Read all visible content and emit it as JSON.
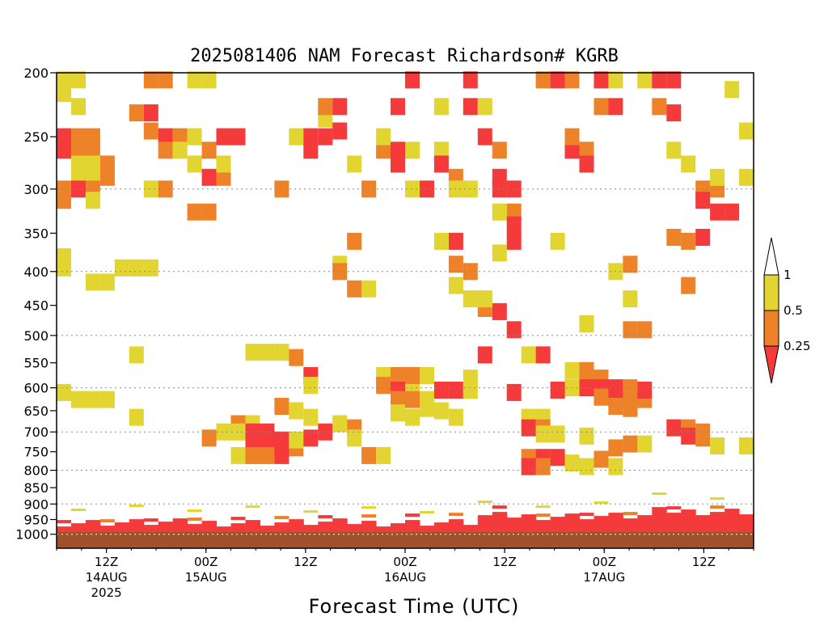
{
  "chart_data": {
    "type": "heatmap",
    "title": "2025081406 NAM Forecast Richardson# KGRB",
    "xlabel": "Forecast Time (UTC)",
    "ylabel": "",
    "x_ticks": [
      {
        "label": "12Z",
        "date": "14AUG",
        "year": "2025",
        "hour": 6
      },
      {
        "label": "00Z",
        "date": "15AUG",
        "year": "",
        "hour": 18
      },
      {
        "label": "12Z",
        "date": "",
        "year": "",
        "hour": 30
      },
      {
        "label": "00Z",
        "date": "16AUG",
        "year": "",
        "hour": 42
      },
      {
        "label": "12Z",
        "date": "",
        "year": "",
        "hour": 54
      },
      {
        "label": "00Z",
        "date": "17AUG",
        "year": "",
        "hour": 66
      },
      {
        "label": "12Z",
        "date": "",
        "year": "",
        "hour": 78
      }
    ],
    "x_range_hours": [
      0,
      84
    ],
    "y_ticks": [
      200,
      250,
      300,
      350,
      400,
      450,
      500,
      550,
      600,
      650,
      700,
      750,
      800,
      850,
      900,
      950,
      1000
    ],
    "y_range_hpa": [
      200,
      1050
    ],
    "y_scale": "log",
    "gridlines_hpa": [
      300,
      400,
      500,
      600,
      700,
      800,
      900,
      1000
    ],
    "surface_top_hpa": 990,
    "legend": {
      "labels": [
        "1",
        "0.5",
        "0.25"
      ],
      "classes": [
        {
          "name": "0.5-1",
          "color": "#e3d531"
        },
        {
          "name": "0.25-0.5",
          "color": "#ee8228"
        },
        {
          "name": "<0.25",
          "color": "#f43a3a"
        }
      ]
    },
    "colors": {
      "yellow": "#e3d531",
      "orange": "#ee8228",
      "red": "#f43a3a",
      "surface": "#a0522d"
    },
    "cells": [
      {
        "x": 0,
        "p": 205,
        "c": "y"
      },
      {
        "x": 1,
        "p": 205,
        "c": "y"
      },
      {
        "x": 0,
        "p": 215,
        "c": "y"
      },
      {
        "x": 1,
        "p": 225,
        "c": "y"
      },
      {
        "x": 0,
        "p": 250,
        "c": "r"
      },
      {
        "x": 1,
        "p": 250,
        "c": "o"
      },
      {
        "x": 2,
        "p": 250,
        "c": "o"
      },
      {
        "x": 0,
        "p": 262,
        "c": "r"
      },
      {
        "x": 1,
        "p": 262,
        "c": "o"
      },
      {
        "x": 2,
        "p": 262,
        "c": "o"
      },
      {
        "x": 1,
        "p": 275,
        "c": "y"
      },
      {
        "x": 2,
        "p": 275,
        "c": "y"
      },
      {
        "x": 3,
        "p": 275,
        "c": "o"
      },
      {
        "x": 1,
        "p": 288,
        "c": "y"
      },
      {
        "x": 2,
        "p": 288,
        "c": "y"
      },
      {
        "x": 3,
        "p": 288,
        "c": "o"
      },
      {
        "x": 0,
        "p": 300,
        "c": "o"
      },
      {
        "x": 1,
        "p": 300,
        "c": "r"
      },
      {
        "x": 2,
        "p": 300,
        "c": "o"
      },
      {
        "x": 0,
        "p": 312,
        "c": "o"
      },
      {
        "x": 2,
        "p": 312,
        "c": "y"
      },
      {
        "x": 0,
        "p": 380,
        "c": "y"
      },
      {
        "x": 0,
        "p": 395,
        "c": "y"
      },
      {
        "x": 2,
        "p": 415,
        "c": "y"
      },
      {
        "x": 3,
        "p": 415,
        "c": "y"
      },
      {
        "x": 4,
        "p": 395,
        "c": "y"
      },
      {
        "x": 5,
        "p": 395,
        "c": "y"
      },
      {
        "x": 6,
        "p": 395,
        "c": "y"
      },
      {
        "x": 6,
        "p": 205,
        "c": "o"
      },
      {
        "x": 7,
        "p": 205,
        "c": "o"
      },
      {
        "x": 5,
        "p": 230,
        "c": "o"
      },
      {
        "x": 6,
        "p": 230,
        "c": "r"
      },
      {
        "x": 6,
        "p": 245,
        "c": "o"
      },
      {
        "x": 7,
        "p": 250,
        "c": "r"
      },
      {
        "x": 8,
        "p": 250,
        "c": "o"
      },
      {
        "x": 7,
        "p": 262,
        "c": "o"
      },
      {
        "x": 8,
        "p": 262,
        "c": "y"
      },
      {
        "x": 9,
        "p": 250,
        "c": "y"
      },
      {
        "x": 9,
        "p": 275,
        "c": "y"
      },
      {
        "x": 10,
        "p": 262,
        "c": "o"
      },
      {
        "x": 10,
        "p": 288,
        "c": "r"
      },
      {
        "x": 11,
        "p": 288,
        "c": "o"
      },
      {
        "x": 9,
        "p": 205,
        "c": "y"
      },
      {
        "x": 10,
        "p": 205,
        "c": "y"
      },
      {
        "x": 11,
        "p": 250,
        "c": "r"
      },
      {
        "x": 12,
        "p": 250,
        "c": "r"
      },
      {
        "x": 11,
        "p": 275,
        "c": "y"
      },
      {
        "x": 10,
        "p": 325,
        "c": "o"
      },
      {
        "x": 9,
        "p": 325,
        "c": "o"
      },
      {
        "x": 6,
        "p": 300,
        "c": "y"
      },
      {
        "x": 7,
        "p": 300,
        "c": "o"
      },
      {
        "x": 15,
        "p": 300,
        "c": "o"
      },
      {
        "x": 16,
        "p": 250,
        "c": "y"
      },
      {
        "x": 17,
        "p": 250,
        "c": "r"
      },
      {
        "x": 18,
        "p": 250,
        "c": "r"
      },
      {
        "x": 17,
        "p": 262,
        "c": "r"
      },
      {
        "x": 18,
        "p": 235,
        "c": "y"
      },
      {
        "x": 19,
        "p": 225,
        "c": "r"
      },
      {
        "x": 18,
        "p": 225,
        "c": "o"
      },
      {
        "x": 19,
        "p": 245,
        "c": "r"
      },
      {
        "x": 20,
        "p": 275,
        "c": "y"
      },
      {
        "x": 22,
        "p": 262,
        "c": "o"
      },
      {
        "x": 23,
        "p": 275,
        "c": "r"
      },
      {
        "x": 24,
        "p": 205,
        "c": "r"
      },
      {
        "x": 24,
        "p": 300,
        "c": "y"
      },
      {
        "x": 25,
        "p": 300,
        "c": "r"
      },
      {
        "x": 23,
        "p": 225,
        "c": "r"
      },
      {
        "x": 22,
        "p": 250,
        "c": "y"
      },
      {
        "x": 23,
        "p": 262,
        "c": "r"
      },
      {
        "x": 24,
        "p": 262,
        "c": "y"
      },
      {
        "x": 21,
        "p": 300,
        "c": "o"
      },
      {
        "x": 26,
        "p": 225,
        "c": "y"
      },
      {
        "x": 26,
        "p": 262,
        "c": "y"
      },
      {
        "x": 26,
        "p": 275,
        "c": "r"
      },
      {
        "x": 27,
        "p": 288,
        "c": "o"
      },
      {
        "x": 27,
        "p": 300,
        "c": "y"
      },
      {
        "x": 28,
        "p": 300,
        "c": "y"
      },
      {
        "x": 28,
        "p": 205,
        "c": "r"
      },
      {
        "x": 28,
        "p": 225,
        "c": "r"
      },
      {
        "x": 29,
        "p": 225,
        "c": "y"
      },
      {
        "x": 29,
        "p": 250,
        "c": "r"
      },
      {
        "x": 30,
        "p": 262,
        "c": "o"
      },
      {
        "x": 30,
        "p": 288,
        "c": "r"
      },
      {
        "x": 30,
        "p": 300,
        "c": "r"
      },
      {
        "x": 31,
        "p": 300,
        "c": "r"
      },
      {
        "x": 31,
        "p": 325,
        "c": "o"
      },
      {
        "x": 30,
        "p": 325,
        "c": "y"
      },
      {
        "x": 31,
        "p": 340,
        "c": "r"
      },
      {
        "x": 33,
        "p": 205,
        "c": "o"
      },
      {
        "x": 34,
        "p": 205,
        "c": "r"
      },
      {
        "x": 35,
        "p": 205,
        "c": "o"
      },
      {
        "x": 35,
        "p": 262,
        "c": "r"
      },
      {
        "x": 35,
        "p": 250,
        "c": "o"
      },
      {
        "x": 36,
        "p": 262,
        "c": "o"
      },
      {
        "x": 36,
        "p": 275,
        "c": "r"
      },
      {
        "x": 37,
        "p": 205,
        "c": "r"
      },
      {
        "x": 38,
        "p": 205,
        "c": "y"
      },
      {
        "x": 38,
        "p": 225,
        "c": "r"
      },
      {
        "x": 37,
        "p": 225,
        "c": "o"
      },
      {
        "x": 40,
        "p": 205,
        "c": "y"
      },
      {
        "x": 41,
        "p": 205,
        "c": "r"
      },
      {
        "x": 42,
        "p": 205,
        "c": "r"
      },
      {
        "x": 41,
        "p": 225,
        "c": "o"
      },
      {
        "x": 42,
        "p": 230,
        "c": "r"
      },
      {
        "x": 42,
        "p": 262,
        "c": "y"
      },
      {
        "x": 44,
        "p": 300,
        "c": "o"
      },
      {
        "x": 45,
        "p": 300,
        "c": "o"
      },
      {
        "x": 44,
        "p": 312,
        "c": "r"
      },
      {
        "x": 45,
        "p": 325,
        "c": "r"
      },
      {
        "x": 46,
        "p": 325,
        "c": "r"
      },
      {
        "x": 46,
        "p": 212,
        "c": "y"
      },
      {
        "x": 47,
        "p": 245,
        "c": "y"
      },
      {
        "x": 47,
        "p": 288,
        "c": "y"
      },
      {
        "x": 45,
        "p": 288,
        "c": "y"
      },
      {
        "x": 43,
        "p": 275,
        "c": "y"
      },
      {
        "x": 20,
        "p": 360,
        "c": "o"
      },
      {
        "x": 19,
        "p": 390,
        "c": "y"
      },
      {
        "x": 19,
        "p": 400,
        "c": "o"
      },
      {
        "x": 20,
        "p": 425,
        "c": "o"
      },
      {
        "x": 21,
        "p": 425,
        "c": "y"
      },
      {
        "x": 27,
        "p": 360,
        "c": "r"
      },
      {
        "x": 26,
        "p": 360,
        "c": "y"
      },
      {
        "x": 27,
        "p": 390,
        "c": "o"
      },
      {
        "x": 28,
        "p": 400,
        "c": "o"
      },
      {
        "x": 27,
        "p": 420,
        "c": "y"
      },
      {
        "x": 29,
        "p": 455,
        "c": "o"
      },
      {
        "x": 30,
        "p": 460,
        "c": "r"
      },
      {
        "x": 29,
        "p": 440,
        "c": "y"
      },
      {
        "x": 28,
        "p": 440,
        "c": "y"
      },
      {
        "x": 31,
        "p": 360,
        "c": "r"
      },
      {
        "x": 30,
        "p": 375,
        "c": "y"
      },
      {
        "x": 34,
        "p": 360,
        "c": "y"
      },
      {
        "x": 38,
        "p": 400,
        "c": "y"
      },
      {
        "x": 39,
        "p": 390,
        "c": "o"
      },
      {
        "x": 39,
        "p": 440,
        "c": "y"
      },
      {
        "x": 39,
        "p": 490,
        "c": "o"
      },
      {
        "x": 40,
        "p": 490,
        "c": "o"
      },
      {
        "x": 36,
        "p": 480,
        "c": "y"
      },
      {
        "x": 31,
        "p": 490,
        "c": "r"
      },
      {
        "x": 42,
        "p": 355,
        "c": "o"
      },
      {
        "x": 43,
        "p": 360,
        "c": "o"
      },
      {
        "x": 44,
        "p": 355,
        "c": "r"
      },
      {
        "x": 43,
        "p": 420,
        "c": "o"
      },
      {
        "x": 5,
        "p": 535,
        "c": "y"
      },
      {
        "x": 13,
        "p": 530,
        "c": "y"
      },
      {
        "x": 14,
        "p": 530,
        "c": "y"
      },
      {
        "x": 15,
        "p": 530,
        "c": "y"
      },
      {
        "x": 16,
        "p": 540,
        "c": "o"
      },
      {
        "x": 17,
        "p": 575,
        "c": "r"
      },
      {
        "x": 17,
        "p": 595,
        "c": "y"
      },
      {
        "x": 29,
        "p": 535,
        "c": "r"
      },
      {
        "x": 32,
        "p": 535,
        "c": "y"
      },
      {
        "x": 33,
        "p": 535,
        "c": "r"
      },
      {
        "x": 22,
        "p": 575,
        "c": "y"
      },
      {
        "x": 23,
        "p": 575,
        "c": "o"
      },
      {
        "x": 24,
        "p": 575,
        "c": "o"
      },
      {
        "x": 25,
        "p": 575,
        "c": "y"
      },
      {
        "x": 22,
        "p": 595,
        "c": "o"
      },
      {
        "x": 23,
        "p": 605,
        "c": "r"
      },
      {
        "x": 24,
        "p": 610,
        "c": "y"
      },
      {
        "x": 23,
        "p": 625,
        "c": "o"
      },
      {
        "x": 24,
        "p": 625,
        "c": "o"
      },
      {
        "x": 25,
        "p": 625,
        "c": "y"
      },
      {
        "x": 26,
        "p": 605,
        "c": "r"
      },
      {
        "x": 27,
        "p": 605,
        "c": "r"
      },
      {
        "x": 28,
        "p": 605,
        "c": "y"
      },
      {
        "x": 28,
        "p": 580,
        "c": "y"
      },
      {
        "x": 25,
        "p": 645,
        "c": "y"
      },
      {
        "x": 35,
        "p": 565,
        "c": "y"
      },
      {
        "x": 36,
        "p": 565,
        "c": "o"
      },
      {
        "x": 36,
        "p": 580,
        "c": "o"
      },
      {
        "x": 37,
        "p": 580,
        "c": "o"
      },
      {
        "x": 35,
        "p": 600,
        "c": "y"
      },
      {
        "x": 36,
        "p": 600,
        "c": "r"
      },
      {
        "x": 37,
        "p": 600,
        "c": "r"
      },
      {
        "x": 38,
        "p": 600,
        "c": "r"
      },
      {
        "x": 39,
        "p": 600,
        "c": "o"
      },
      {
        "x": 37,
        "p": 620,
        "c": "o"
      },
      {
        "x": 38,
        "p": 620,
        "c": "r"
      },
      {
        "x": 39,
        "p": 630,
        "c": "o"
      },
      {
        "x": 38,
        "p": 640,
        "c": "o"
      },
      {
        "x": 39,
        "p": 645,
        "c": "o"
      },
      {
        "x": 40,
        "p": 625,
        "c": "o"
      },
      {
        "x": 40,
        "p": 605,
        "c": "r"
      },
      {
        "x": 34,
        "p": 605,
        "c": "r"
      },
      {
        "x": 31,
        "p": 610,
        "c": "r"
      },
      {
        "x": 0,
        "p": 610,
        "c": "y"
      },
      {
        "x": 1,
        "p": 625,
        "c": "y"
      },
      {
        "x": 2,
        "p": 625,
        "c": "y"
      },
      {
        "x": 3,
        "p": 625,
        "c": "y"
      },
      {
        "x": 5,
        "p": 665,
        "c": "y"
      },
      {
        "x": 12,
        "p": 680,
        "c": "o"
      },
      {
        "x": 13,
        "p": 680,
        "c": "y"
      },
      {
        "x": 12,
        "p": 700,
        "c": "y"
      },
      {
        "x": 13,
        "p": 700,
        "c": "r"
      },
      {
        "x": 14,
        "p": 700,
        "c": "r"
      },
      {
        "x": 13,
        "p": 720,
        "c": "r"
      },
      {
        "x": 14,
        "p": 720,
        "c": "r"
      },
      {
        "x": 15,
        "p": 720,
        "c": "r"
      },
      {
        "x": 14,
        "p": 740,
        "c": "r"
      },
      {
        "x": 15,
        "p": 740,
        "c": "r"
      },
      {
        "x": 16,
        "p": 740,
        "c": "o"
      },
      {
        "x": 12,
        "p": 760,
        "c": "y"
      },
      {
        "x": 13,
        "p": 760,
        "c": "o"
      },
      {
        "x": 14,
        "p": 760,
        "c": "o"
      },
      {
        "x": 15,
        "p": 760,
        "c": "r"
      },
      {
        "x": 11,
        "p": 700,
        "c": "y"
      },
      {
        "x": 10,
        "p": 715,
        "c": "o"
      },
      {
        "x": 16,
        "p": 720,
        "c": "y"
      },
      {
        "x": 17,
        "p": 715,
        "c": "r"
      },
      {
        "x": 18,
        "p": 700,
        "c": "r"
      },
      {
        "x": 19,
        "p": 680,
        "c": "y"
      },
      {
        "x": 20,
        "p": 690,
        "c": "o"
      },
      {
        "x": 20,
        "p": 715,
        "c": "y"
      },
      {
        "x": 21,
        "p": 760,
        "c": "o"
      },
      {
        "x": 22,
        "p": 760,
        "c": "y"
      },
      {
        "x": 15,
        "p": 640,
        "c": "o"
      },
      {
        "x": 16,
        "p": 650,
        "c": "y"
      },
      {
        "x": 17,
        "p": 665,
        "c": "y"
      },
      {
        "x": 23,
        "p": 655,
        "c": "y"
      },
      {
        "x": 24,
        "p": 665,
        "c": "y"
      },
      {
        "x": 26,
        "p": 650,
        "c": "y"
      },
      {
        "x": 27,
        "p": 665,
        "c": "y"
      },
      {
        "x": 32,
        "p": 665,
        "c": "y"
      },
      {
        "x": 33,
        "p": 665,
        "c": "y"
      },
      {
        "x": 32,
        "p": 690,
        "c": "r"
      },
      {
        "x": 33,
        "p": 690,
        "c": "o"
      },
      {
        "x": 33,
        "p": 705,
        "c": "y"
      },
      {
        "x": 34,
        "p": 705,
        "c": "y"
      },
      {
        "x": 36,
        "p": 710,
        "c": "y"
      },
      {
        "x": 38,
        "p": 740,
        "c": "o"
      },
      {
        "x": 39,
        "p": 730,
        "c": "o"
      },
      {
        "x": 40,
        "p": 730,
        "c": "y"
      },
      {
        "x": 42,
        "p": 690,
        "c": "r"
      },
      {
        "x": 43,
        "p": 690,
        "c": "o"
      },
      {
        "x": 44,
        "p": 700,
        "c": "o"
      },
      {
        "x": 43,
        "p": 710,
        "c": "r"
      },
      {
        "x": 44,
        "p": 715,
        "c": "o"
      },
      {
        "x": 45,
        "p": 735,
        "c": "y"
      },
      {
        "x": 47,
        "p": 735,
        "c": "y"
      },
      {
        "x": 32,
        "p": 765,
        "c": "o"
      },
      {
        "x": 33,
        "p": 765,
        "c": "r"
      },
      {
        "x": 34,
        "p": 765,
        "c": "r"
      },
      {
        "x": 33,
        "p": 790,
        "c": "o"
      },
      {
        "x": 32,
        "p": 790,
        "c": "r"
      },
      {
        "x": 35,
        "p": 780,
        "c": "y"
      },
      {
        "x": 36,
        "p": 790,
        "c": "y"
      },
      {
        "x": 37,
        "p": 770,
        "c": "o"
      },
      {
        "x": 38,
        "p": 790,
        "c": "y"
      }
    ]
  }
}
